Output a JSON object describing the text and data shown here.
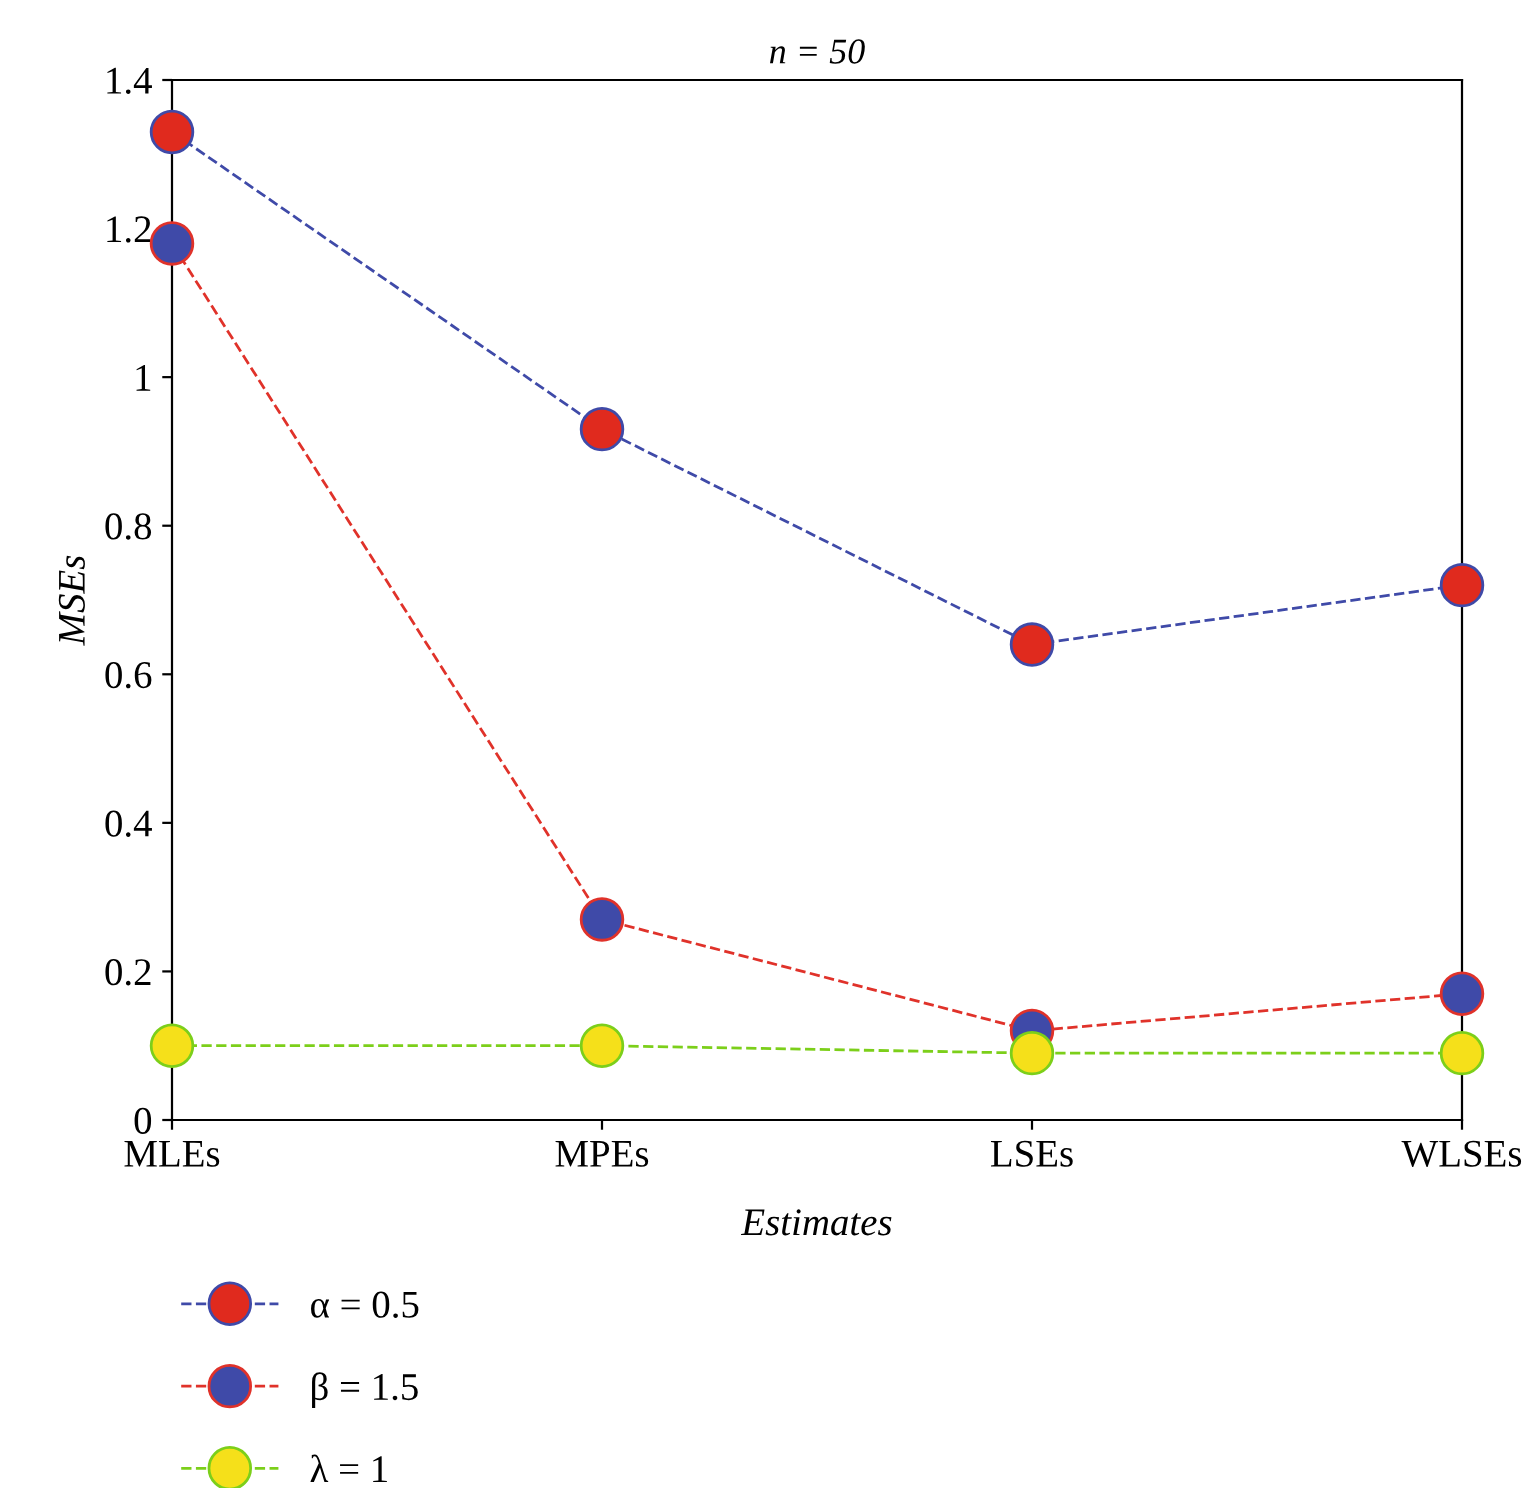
{
  "chart_data": {
    "type": "line",
    "title": "n = 50",
    "xlabel": "Estimates",
    "ylabel": "MSEs",
    "categories": [
      "MLEs",
      "MPEs",
      "LSEs",
      "WLSEs"
    ],
    "series": [
      {
        "name": "α = 0.5",
        "color": "#3f4aa8",
        "colors": [
          "#e02a1e",
          "#e02a1e",
          "#e02a1e",
          "#e02a1e"
        ],
        "values": [
          1.33,
          0.93,
          0.64,
          0.72
        ]
      },
      {
        "name": "β = 1.5",
        "color": "#e0322a",
        "colors": [
          "#3f4aa8",
          "#3f4aa8",
          "#3f4aa8",
          "#3f4aa8"
        ],
        "values": [
          1.18,
          0.27,
          0.12,
          0.17
        ]
      },
      {
        "name": "λ = 1",
        "color": "#7ccf1a",
        "colors": [
          "#f5e01a",
          "#f5e01a",
          "#f5e01a",
          "#f5e01a"
        ],
        "values": [
          0.1,
          0.1,
          0.09,
          0.09
        ]
      }
    ],
    "ylim": [
      0,
      1.4
    ],
    "yticks": [
      0,
      0.2,
      0.4,
      0.6,
      0.8,
      1,
      1.2,
      1.4
    ],
    "marker": "circle",
    "line_style": "dashed",
    "grid": false,
    "legend": "bottom"
  }
}
